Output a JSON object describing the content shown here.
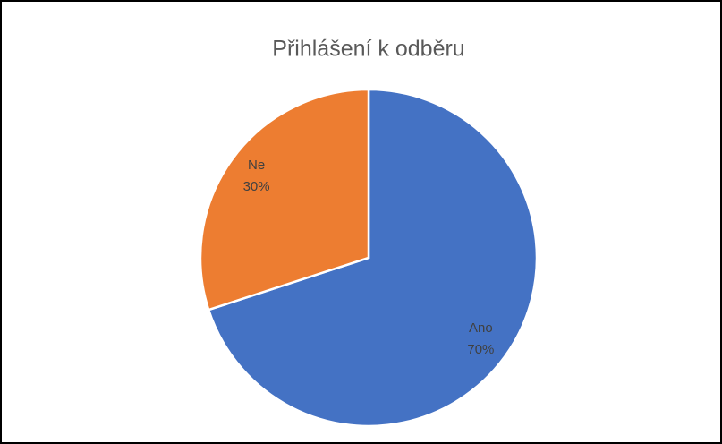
{
  "chart_data": {
    "type": "pie",
    "title": "Přihlášení k odběru",
    "categories": [
      "Ano",
      "Ne"
    ],
    "values": [
      70,
      30
    ],
    "value_labels": [
      "70%",
      "30%"
    ],
    "colors": [
      "#4472c4",
      "#ed7d31"
    ]
  }
}
